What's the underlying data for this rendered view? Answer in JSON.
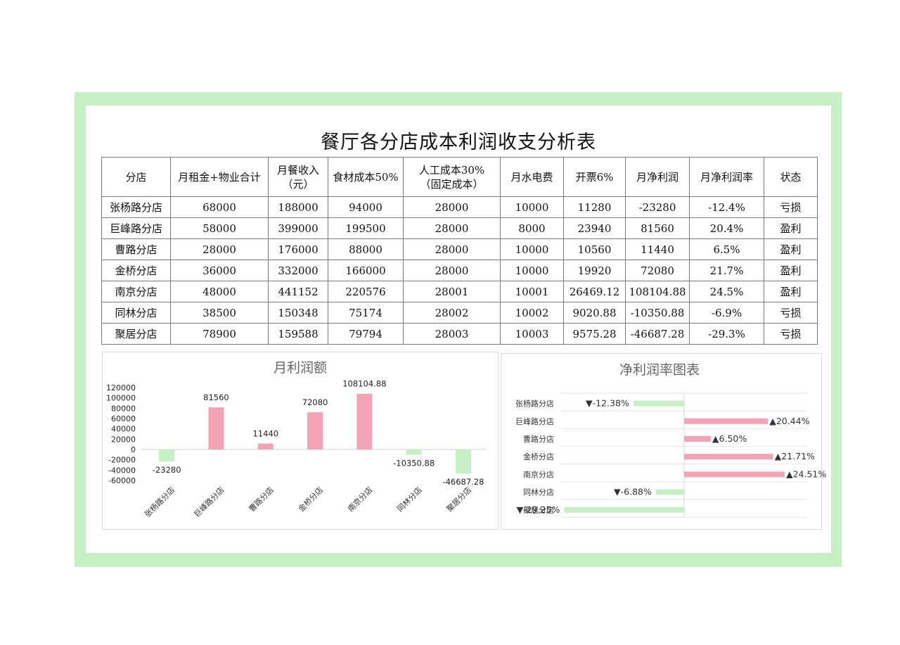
{
  "title": "餐厅各分店成本利润收支分析表",
  "table": {
    "headers": [
      {
        "l1": "分店",
        "l2": ""
      },
      {
        "l1": "月租金+物业合计",
        "l2": ""
      },
      {
        "l1": "月餐收入",
        "l2": "（元）"
      },
      {
        "l1": "食材成本50%",
        "l2": ""
      },
      {
        "l1": "人工成本30%",
        "l2": "（固定成本）"
      },
      {
        "l1": "月水电费",
        "l2": ""
      },
      {
        "l1": "开票6%",
        "l2": ""
      },
      {
        "l1": "月净利润",
        "l2": ""
      },
      {
        "l1": "月净利润率",
        "l2": ""
      },
      {
        "l1": "状态",
        "l2": ""
      }
    ],
    "rows": [
      [
        "张杨路分店",
        "68000",
        "188000",
        "94000",
        "28000",
        "10000",
        "11280",
        "-23280",
        "-12.4%",
        "亏损"
      ],
      [
        "巨峰路分店",
        "58000",
        "399000",
        "199500",
        "28000",
        "8000",
        "23940",
        "81560",
        "20.4%",
        "盈利"
      ],
      [
        "曹路分店",
        "28000",
        "176000",
        "88000",
        "28000",
        "10000",
        "10560",
        "11440",
        "6.5%",
        "盈利"
      ],
      [
        "金桥分店",
        "36000",
        "332000",
        "166000",
        "28000",
        "10000",
        "19920",
        "72080",
        "21.7%",
        "盈利"
      ],
      [
        "南京分店",
        "48000",
        "441152",
        "220576",
        "28001",
        "10001",
        "26469.12",
        "108104.88",
        "24.5%",
        "盈利"
      ],
      [
        "同林分店",
        "38500",
        "150348",
        "75174",
        "28002",
        "10002",
        "9020.88",
        "-10350.88",
        "-6.9%",
        "亏损"
      ],
      [
        "聚居分店",
        "78900",
        "159588",
        "79794",
        "28003",
        "10003",
        "9575.28",
        "-46687.28",
        "-29.3%",
        "亏损"
      ]
    ]
  },
  "colors": {
    "frame": "#c6efc4",
    "positive_bar": "#f4a3b6",
    "negative_bar": "#c6efc4"
  },
  "chart_data": [
    {
      "type": "bar",
      "title": "月利润额",
      "categories": [
        "张杨路分店",
        "巨峰路分店",
        "曹路分店",
        "金桥分店",
        "南京分店",
        "同林分店",
        "聚居分店"
      ],
      "values": [
        -23280,
        81560,
        11440,
        72080,
        108104.88,
        -10350.88,
        -46687.28
      ],
      "value_labels": [
        "-23280",
        "81560",
        "11440",
        "72080",
        "108104.88",
        "-10350.88",
        "-46687.28"
      ],
      "y_ticks": [
        120000,
        100000,
        80000,
        60000,
        40000,
        20000,
        0,
        -20000,
        -40000,
        -60000
      ],
      "ylim": [
        -60000,
        120000
      ]
    },
    {
      "type": "bar",
      "orientation": "horizontal",
      "title": "净利润率图表",
      "categories": [
        "张杨路分店",
        "巨峰路分店",
        "曹路分店",
        "金桥分店",
        "南京分店",
        "同林分店",
        "聚居分店"
      ],
      "values": [
        -12.38,
        20.44,
        6.5,
        21.71,
        24.51,
        -6.88,
        -29.25
      ],
      "value_labels": [
        "▼-12.38%",
        "▲20.44%",
        "▲6.50%",
        "▲21.71%",
        "▲24.51%",
        "▼-6.88%",
        "▼-29.25%"
      ],
      "xlim": [
        -30,
        30
      ]
    }
  ]
}
